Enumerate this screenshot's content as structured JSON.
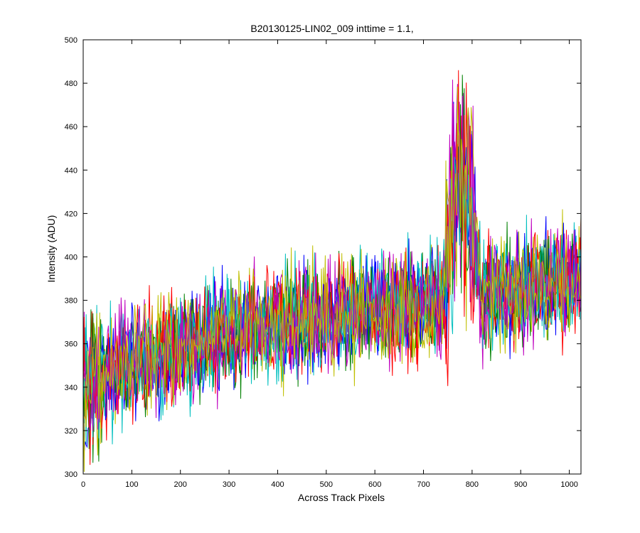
{
  "chart_data": {
    "type": "line",
    "title": "B20130125-LIN02_009 inttime = 1.1,",
    "xlabel": "Across Track Pixels",
    "ylabel": "Intensity (ADU)",
    "xlim": [
      0,
      1024
    ],
    "ylim": [
      300,
      500
    ],
    "xticks": [
      0,
      100,
      200,
      300,
      400,
      500,
      600,
      700,
      800,
      900,
      1000
    ],
    "yticks": [
      300,
      320,
      340,
      360,
      380,
      400,
      420,
      440,
      460,
      480,
      500
    ],
    "grid": false,
    "legend": "none",
    "series_colors": [
      "#0000ff",
      "#008000",
      "#ff0000",
      "#00bfbf",
      "#bf00bf",
      "#bfbf00"
    ],
    "baseline_trend": {
      "x": [
        0,
        100,
        200,
        300,
        400,
        500,
        600,
        700,
        740,
        760,
        780,
        800,
        820,
        900,
        1000,
        1024
      ],
      "y": [
        340,
        352,
        358,
        365,
        370,
        373,
        376,
        378,
        380,
        420,
        430,
        415,
        382,
        385,
        388,
        390
      ]
    },
    "noise_amplitude_adu": 12,
    "peak": {
      "x_range": [
        745,
        805
      ],
      "max_value": 486
    },
    "sample_step": 2
  }
}
